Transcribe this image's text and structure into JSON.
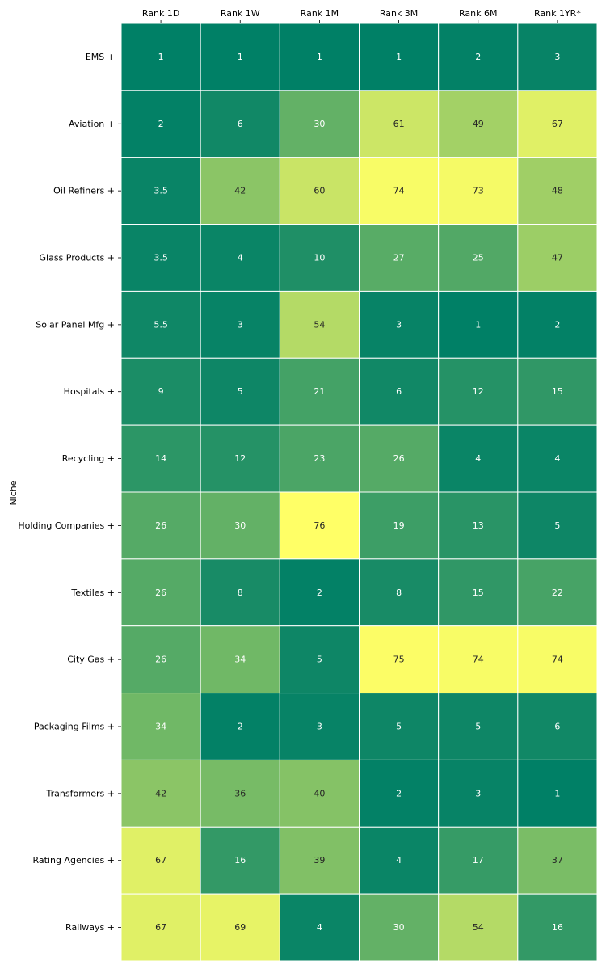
{
  "chart_data": {
    "type": "heatmap",
    "ylabel": "Niche",
    "columns": [
      "Rank 1D",
      "Rank 1W",
      "Rank 1M",
      "Rank 3M",
      "Rank 6M",
      "Rank 1YR*"
    ],
    "rows": [
      {
        "label": "EMS  +",
        "values": [
          "1",
          "1",
          "1",
          "1",
          "2",
          "3"
        ]
      },
      {
        "label": "Aviation  +",
        "values": [
          "2",
          "6",
          "30",
          "61",
          "49",
          "67"
        ]
      },
      {
        "label": "Oil Refiners  +",
        "values": [
          "3.5",
          "42",
          "60",
          "74",
          "73",
          "48"
        ]
      },
      {
        "label": "Glass Products  +",
        "values": [
          "3.5",
          "4",
          "10",
          "27",
          "25",
          "47"
        ]
      },
      {
        "label": "Solar Panel Mfg  +",
        "values": [
          "5.5",
          "3",
          "54",
          "3",
          "1",
          "2"
        ]
      },
      {
        "label": "Hospitals  +",
        "values": [
          "9",
          "5",
          "21",
          "6",
          "12",
          "15"
        ]
      },
      {
        "label": "Recycling  +",
        "values": [
          "14",
          "12",
          "23",
          "26",
          "4",
          "4"
        ]
      },
      {
        "label": "Holding Companies  +",
        "values": [
          "26",
          "30",
          "76",
          "19",
          "13",
          "5"
        ]
      },
      {
        "label": "Textiles  +",
        "values": [
          "26",
          "8",
          "2",
          "8",
          "15",
          "22"
        ]
      },
      {
        "label": "City Gas  +",
        "values": [
          "26",
          "34",
          "5",
          "75",
          "74",
          "74"
        ]
      },
      {
        "label": "Packaging Films  +",
        "values": [
          "34",
          "2",
          "3",
          "5",
          "5",
          "6"
        ]
      },
      {
        "label": "Transformers  +",
        "values": [
          "42",
          "36",
          "40",
          "2",
          "3",
          "1"
        ]
      },
      {
        "label": "Rating Agencies  +",
        "values": [
          "67",
          "16",
          "39",
          "4",
          "17",
          "37"
        ]
      },
      {
        "label": "Railways  +",
        "values": [
          "67",
          "69",
          "4",
          "30",
          "54",
          "16"
        ]
      }
    ],
    "colormap": "summer",
    "value_range": [
      1,
      76
    ],
    "legend": "none"
  }
}
